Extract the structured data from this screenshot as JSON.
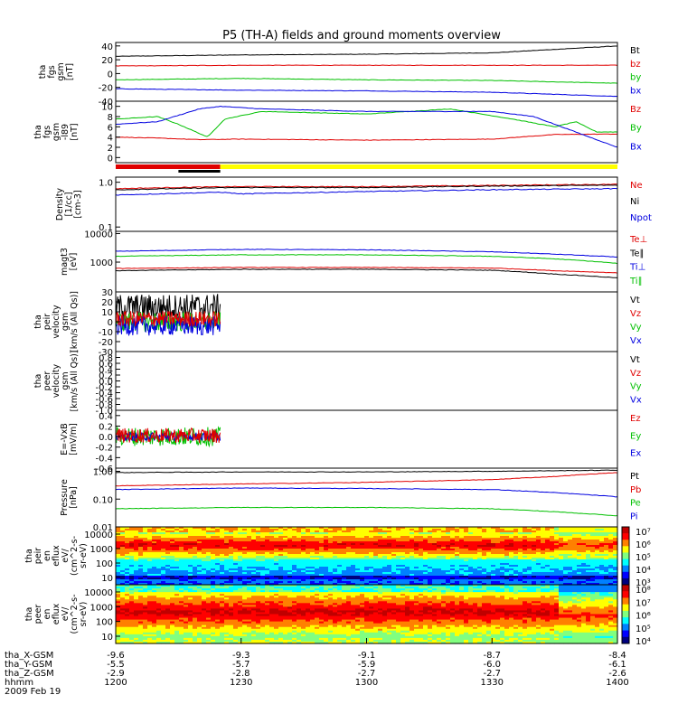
{
  "title": "P5 (TH-A) fields and ground moments overview",
  "chart_data": [
    {
      "type": "line",
      "ylabel": [
        "tha",
        "fgs",
        "gsm",
        "[nT]"
      ],
      "yticks": [
        40,
        20,
        0,
        -20,
        -40
      ],
      "ylim": [
        -40,
        45
      ],
      "legend": [
        {
          "name": "Bt",
          "color": "#000000"
        },
        {
          "name": "bz",
          "color": "#e00000"
        },
        {
          "name": "by",
          "color": "#00c000"
        },
        {
          "name": "bx",
          "color": "#0000e0"
        }
      ],
      "series": [
        {
          "name": "Bt",
          "color": "#000000",
          "x": [
            1200,
            1230,
            1300,
            1330,
            1345,
            1400
          ],
          "y": [
            25,
            27,
            28,
            30,
            35,
            40
          ]
        },
        {
          "name": "bz",
          "color": "#e00000",
          "x": [
            1200,
            1230,
            1300,
            1330,
            1400
          ],
          "y": [
            11,
            12,
            12,
            12,
            12
          ]
        },
        {
          "name": "by",
          "color": "#00c000",
          "x": [
            1200,
            1230,
            1300,
            1330,
            1400
          ],
          "y": [
            -9,
            -7,
            -9,
            -10,
            -14
          ]
        },
        {
          "name": "bx",
          "color": "#0000e0",
          "x": [
            1200,
            1230,
            1300,
            1330,
            1400
          ],
          "y": [
            -22,
            -24,
            -25,
            -27,
            -33
          ]
        }
      ]
    },
    {
      "type": "line",
      "ylabel": [
        "tha",
        "fgs",
        "gsm",
        "-l89",
        "[nT]"
      ],
      "yticks": [
        10,
        8,
        6,
        4,
        2,
        0
      ],
      "ylim": [
        -1,
        11
      ],
      "legend": [
        {
          "name": "Bz",
          "color": "#e00000"
        },
        {
          "name": "By",
          "color": "#00c000"
        },
        {
          "name": "Bx",
          "color": "#0000e0"
        }
      ],
      "series": [
        {
          "name": "Bz",
          "color": "#e00000",
          "x": [
            1200,
            1210,
            1220,
            1230,
            1300,
            1330,
            1345,
            1400
          ],
          "y": [
            4,
            3.8,
            3.5,
            3.6,
            3.4,
            3.6,
            4.5,
            4.6
          ]
        },
        {
          "name": "By",
          "color": "#00c000",
          "x": [
            1200,
            1210,
            1215,
            1222,
            1226,
            1235,
            1300,
            1320,
            1335,
            1345,
            1350,
            1355,
            1400
          ],
          "y": [
            7.5,
            8,
            6.5,
            4,
            7.5,
            9,
            8.5,
            9.5,
            7.5,
            6,
            7,
            5,
            5
          ]
        },
        {
          "name": "Bx",
          "color": "#0000e0",
          "x": [
            1200,
            1210,
            1220,
            1225,
            1235,
            1300,
            1330,
            1340,
            1350,
            1400
          ],
          "y": [
            6.5,
            7,
            9.5,
            10,
            9.5,
            9,
            9,
            8,
            5,
            2
          ]
        }
      ]
    },
    {
      "type": "line",
      "ylabel": [
        "Density",
        "[1/cc]",
        "[cm-3]"
      ],
      "yticks": [
        "1.0",
        "0.1"
      ],
      "ylim": [
        0.08,
        1.3
      ],
      "log_y": true,
      "legend": [
        {
          "name": "Ne",
          "color": "#e00000"
        },
        {
          "name": "Ni",
          "color": "#000000"
        },
        {
          "name": "Npot",
          "color": "#0000e0"
        }
      ],
      "series": [
        {
          "name": "Ne",
          "color": "#e00000",
          "x": [
            1200,
            1220,
            1230,
            1300,
            1330,
            1400
          ],
          "y": [
            0.72,
            0.78,
            0.8,
            0.8,
            0.85,
            0.9
          ]
        },
        {
          "name": "Ni",
          "color": "#000000",
          "x": [
            1200,
            1220,
            1230,
            1300,
            1330,
            1400
          ],
          "y": [
            0.68,
            0.74,
            0.76,
            0.76,
            0.82,
            0.86
          ]
        },
        {
          "name": "Npot",
          "color": "#0000e0",
          "x": [
            1200,
            1220,
            1225,
            1230,
            1300,
            1330,
            1400
          ],
          "y": [
            0.52,
            0.58,
            0.6,
            0.55,
            0.62,
            0.68,
            0.72
          ]
        }
      ]
    },
    {
      "type": "line",
      "ylabel": [
        "magt3",
        "[eV]"
      ],
      "yticks": [
        10000,
        1000
      ],
      "ylim": [
        90,
        12000
      ],
      "log_y": true,
      "legend": [
        {
          "name": "Te⊥",
          "color": "#e00000"
        },
        {
          "name": "Te∥",
          "color": "#000000"
        },
        {
          "name": "Ti⊥",
          "color": "#0000e0"
        },
        {
          "name": "Ti∥",
          "color": "#00c000"
        }
      ],
      "series": [
        {
          "name": "Ti⊥",
          "color": "#0000e0",
          "x": [
            1200,
            1230,
            1300,
            1330,
            1345,
            1400
          ],
          "y": [
            2400,
            2800,
            2700,
            2300,
            1900,
            1500
          ]
        },
        {
          "name": "Ti∥",
          "color": "#00c000",
          "x": [
            1200,
            1230,
            1300,
            1330,
            1345,
            1400
          ],
          "y": [
            1600,
            1800,
            1800,
            1600,
            1300,
            900
          ]
        },
        {
          "name": "Te⊥",
          "color": "#e00000",
          "x": [
            1200,
            1230,
            1300,
            1330,
            1345,
            1400
          ],
          "y": [
            600,
            650,
            650,
            620,
            500,
            420
          ]
        },
        {
          "name": "Te∥",
          "color": "#000000",
          "x": [
            1200,
            1230,
            1300,
            1330,
            1345,
            1400
          ],
          "y": [
            500,
            560,
            560,
            520,
            380,
            280
          ]
        }
      ]
    },
    {
      "type": "line",
      "ylabel": [
        "tha",
        "peir",
        "velocity",
        "gsm",
        "[km/s (All Qs)]"
      ],
      "yticks": [
        30,
        20,
        10,
        0,
        -10,
        -20,
        -30
      ],
      "ylim": [
        -30,
        30
      ],
      "legend": [
        {
          "name": "Vt",
          "color": "#000000"
        },
        {
          "name": "Vz",
          "color": "#e00000"
        },
        {
          "name": "Vy",
          "color": "#00c000"
        },
        {
          "name": "Vx",
          "color": "#0000e0"
        }
      ],
      "x_end": 1225,
      "series": [
        {
          "name": "Vt",
          "color": "#000000",
          "mean": 15,
          "spread": 13
        },
        {
          "name": "Vy",
          "color": "#00c000",
          "mean": 0,
          "spread": 10
        },
        {
          "name": "Vx",
          "color": "#0000e0",
          "mean": -4,
          "spread": 10
        },
        {
          "name": "Vz",
          "color": "#e00000",
          "mean": 3,
          "spread": 8
        }
      ]
    },
    {
      "type": "line",
      "ylabel": [
        "tha",
        "peer",
        "velocity",
        "gsm",
        "[km/s (All Qs)]"
      ],
      "yticks": [
        "0.8",
        "0.6",
        "0.4",
        "0.2",
        "0.0",
        "-0.2",
        "-0.4",
        "-0.6",
        "-0.8",
        "-1.0"
      ],
      "ylim": [
        -1,
        1
      ],
      "legend": [
        {
          "name": "Vt",
          "color": "#000000"
        },
        {
          "name": "Vz",
          "color": "#e00000"
        },
        {
          "name": "Vy",
          "color": "#00c000"
        },
        {
          "name": "Vx",
          "color": "#0000e0"
        }
      ],
      "series": []
    },
    {
      "type": "line",
      "ylabel": [
        "E=-VxB",
        "[mV/m]"
      ],
      "yticks": [
        "0.4",
        "0.2",
        "0.0",
        "-0.2",
        "-0.4",
        "-0.6"
      ],
      "ylim": [
        -0.6,
        0.5
      ],
      "legend": [
        {
          "name": "Ez",
          "color": "#e00000"
        },
        {
          "name": "Ey",
          "color": "#00c000"
        },
        {
          "name": "Ex",
          "color": "#0000e0"
        }
      ],
      "x_end": 1225,
      "series": [
        {
          "name": "Ey",
          "color": "#00c000",
          "mean": 0,
          "spread": 0.18
        },
        {
          "name": "Ex",
          "color": "#0000e0",
          "mean": 0,
          "spread": 0.08
        },
        {
          "name": "Ez",
          "color": "#e00000",
          "mean": 0.02,
          "spread": 0.14
        }
      ]
    },
    {
      "type": "line",
      "ylabel": [
        "Pressure",
        "[nPa]"
      ],
      "yticks": [
        "1.00",
        "0.10",
        "0.01"
      ],
      "ylim": [
        0.01,
        1.3
      ],
      "log_y": true,
      "legend": [
        {
          "name": "Pt",
          "color": "#000000"
        },
        {
          "name": "Pb",
          "color": "#e00000"
        },
        {
          "name": "Pe",
          "color": "#00c000"
        },
        {
          "name": "Pi",
          "color": "#0000e0"
        }
      ],
      "series": [
        {
          "name": "Pt",
          "color": "#000000",
          "x": [
            1200,
            1230,
            1300,
            1330,
            1400
          ],
          "y": [
            0.9,
            0.95,
            0.95,
            1.0,
            1.1
          ]
        },
        {
          "name": "Pb",
          "color": "#e00000",
          "x": [
            1200,
            1230,
            1300,
            1330,
            1345,
            1400
          ],
          "y": [
            0.3,
            0.35,
            0.4,
            0.5,
            0.65,
            0.9
          ]
        },
        {
          "name": "Pi",
          "color": "#0000e0",
          "x": [
            1200,
            1230,
            1300,
            1330,
            1345,
            1400
          ],
          "y": [
            0.22,
            0.25,
            0.24,
            0.22,
            0.17,
            0.12
          ]
        },
        {
          "name": "Pe",
          "color": "#00c000",
          "x": [
            1200,
            1230,
            1300,
            1330,
            1345,
            1400
          ],
          "y": [
            0.045,
            0.05,
            0.05,
            0.045,
            0.035,
            0.025
          ]
        }
      ]
    },
    {
      "type": "heatmap",
      "ylabel": [
        "tha",
        "peir",
        "en",
        "eflux",
        "eV/",
        "(cm^2-s-",
        "sr-eV)"
      ],
      "yticks": [
        10000,
        1000,
        100,
        10
      ]
    },
    {
      "type": "heatmap",
      "ylabel": [
        "tha",
        "peer",
        "en",
        "eflux",
        "eV/",
        "(cm^2-s-",
        "sr-eV)"
      ],
      "yticks": [
        10000,
        1000,
        100,
        10
      ]
    }
  ],
  "colorbars": [
    {
      "labels": [
        "10⁷",
        "10⁶",
        "10⁵",
        "10⁴",
        "10³"
      ]
    },
    {
      "labels": [
        "10⁸",
        "10⁷",
        "10⁶",
        "10⁵",
        "10⁴"
      ]
    }
  ],
  "x_axis": {
    "xrange": [
      1200,
      1400
    ],
    "tick_positions_hhmm": [
      "1200",
      "1230",
      "1300",
      "1330",
      "1400"
    ],
    "rows": [
      {
        "label": "tha_X-GSM",
        "values": [
          "-9.6",
          "-9.3",
          "-9.1",
          "-8.7",
          "-8.4"
        ]
      },
      {
        "label": "tha_Y-GSM",
        "values": [
          "-5.5",
          "-5.7",
          "-5.9",
          "-6.0",
          "-6.1"
        ]
      },
      {
        "label": "tha_Z-GSM",
        "values": [
          "-2.9",
          "-2.8",
          "-2.7",
          "-2.7",
          "-2.6"
        ]
      },
      {
        "label": "hhmm",
        "values": [
          "1200",
          "1230",
          "1300",
          "1330",
          "1400"
        ]
      }
    ],
    "date": "2009 Feb 19"
  },
  "mode_bar": {
    "colors": {
      "red": "#e00000",
      "yellow": "#ffff00",
      "black": "#000000"
    }
  }
}
